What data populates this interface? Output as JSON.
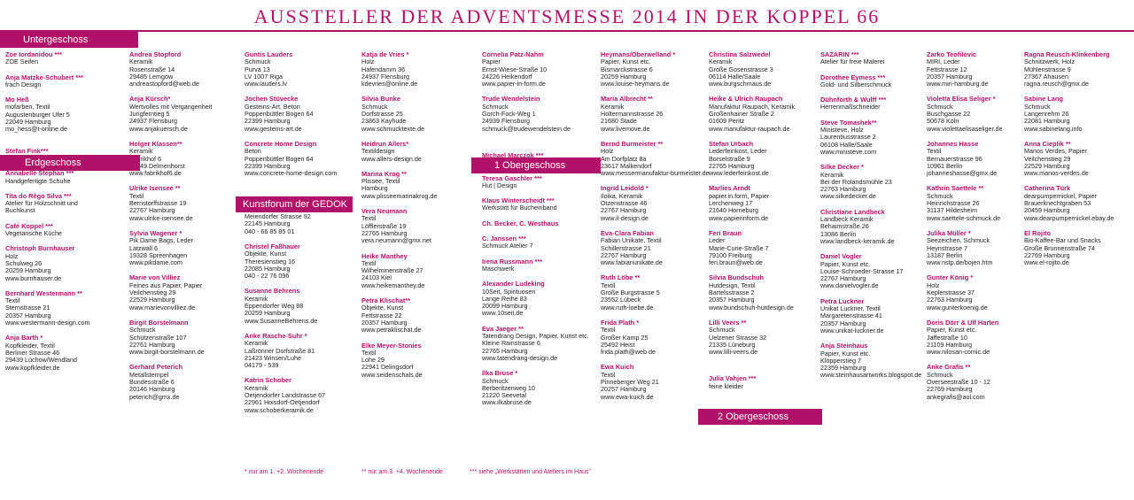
{
  "title": "AUSSTELLER DER ADVENTSMESSE 2014 IN DER KOPPEL 66",
  "banners": {
    "untergeschoss": "Untergeschoss",
    "erdgeschoss": "Erdgeschoss",
    "kunstforum": "Kunstforum der GEDOK",
    "obergeschoss1": "1 Obergeschoss",
    "obergeschoss2": "2 Obergeschoss"
  },
  "footnotes": {
    "f1": "* nur am 1. +2. Wochenende",
    "f2": "** nur am 3. +4. Wochenende",
    "f3": "*** siehe „Werkstätten und Ateliers im Haus\""
  },
  "columns": [
    [
      {
        "name": "Zoe Iordanidou ***",
        "lines": [
          "ZOE Seifen"
        ]
      },
      {
        "name": "Anja Matzke-Schubert ***",
        "lines": [
          "frach Design"
        ]
      },
      {
        "name": "Mo Heß",
        "lines": [
          "mofarben, Textil",
          "Augustenburger Ufer 5",
          "22049 Hamburg",
          "mo_hess@t-online.de"
        ]
      },
      {
        "name": "Stefan Fink***",
        "lines": [
          "Handgemachte Schreibgeräte"
        ]
      },
      {
        "name": "Annabelle Stephan ***",
        "lines": [
          "Handgefertigte Schuhe"
        ]
      },
      {
        "name": "Tita do Rêgo Silva ***",
        "lines": [
          "Atelier für Holzschnitt und",
          "Buchkunst"
        ]
      },
      {
        "name": "Café Koppel ***",
        "lines": [
          "Vegetarische Küche"
        ]
      },
      {
        "name": "Christoph Burnhauser",
        "lines": [
          "Holz",
          "Schulweg 26",
          "20259 Hamburg",
          "www.burnhauser.de"
        ]
      },
      {
        "name": "Bernhard Westermann **",
        "lines": [
          "Textil",
          "Sternstrasse 21",
          "20357 Hamburg",
          "www.westermann-design.com"
        ]
      },
      {
        "name": "Anja Barth *",
        "lines": [
          "Kopfkleider, Textil",
          "Berliner Strasse 46",
          "29439 Lüchow/Wendland",
          "www.kopfkleider.de"
        ]
      }
    ],
    [
      {
        "name": "Andrea Stopford",
        "lines": [
          "Keramik",
          "Rosenstraße 14",
          "29485 Lemgow",
          "andreastopford@web.de"
        ]
      },
      {
        "name": "Anja Kürsch*",
        "lines": [
          "Wertvolles mit Vergangenheit",
          "Jungferntieg 5",
          "24937 Flensburg",
          "www.anjakuersch.de"
        ]
      },
      {
        "name": "Holger Klassen**",
        "lines": [
          "Keramik",
          "Fabrikhof 6",
          "27749 Delmenhorst",
          "www.fabrikhof6.de"
        ]
      },
      {
        "name": "Ulrike Isensee **",
        "lines": [
          "Textil",
          "Bernstorffstrasse 19",
          "22767 Hamburg",
          "www.ulrike-isensee.de"
        ]
      },
      {
        "name": "Sylvia Wagener *",
        "lines": [
          "Pik Dame Bags, Leder",
          "Latzwall 6",
          "19328 Spreenhagen",
          "www.pikdame.com"
        ]
      },
      {
        "name": "Marie von Villiez",
        "lines": [
          "Feines aus Papier, Papier",
          "Veilchenstieg 29",
          "22529 Hamburg",
          "www.marievonvilliez.de"
        ]
      },
      {
        "name": "Birgit Borstelmann",
        "lines": [
          "Schmuck",
          "Schützenstraße 107",
          "22761 Hamburg",
          "www.birgit-borstelmann.de"
        ]
      },
      {
        "name": "Gerhard Peterich",
        "lines": [
          "Metallstempel",
          "Bundesstraße 6",
          "20146 Hamburg",
          "peterich@gmx.de"
        ]
      }
    ],
    [
      {
        "name": "Guntis Lauders",
        "lines": [
          "Schmuck",
          "Purva 13",
          "LV 1007 Riga",
          "www.lauders.lv"
        ]
      },
      {
        "name": "Jochen Stüvecke",
        "lines": [
          "Gesteins-Art, Beton",
          "Poppenbüttler Bogen 64",
          "22399 Hamburg",
          "www.gesteins-art.de"
        ]
      },
      {
        "name": "Concrete Home Design",
        "lines": [
          "Beton",
          "Poppenbüttler Bogen 64",
          "22399 Hamburg",
          "www.concrete-home-design.com"
        ]
      },
      {
        "name": "Marion Meckel **",
        "lines": [
          "Schmuck",
          "Meiendorfer Strasse 92",
          "22145 Hamburg",
          "040 - 66 85 85 01"
        ]
      },
      {
        "name": "Christel Faßhauer",
        "lines": [
          "Objekte, Kunst",
          "Theresienstieg 16",
          "22085 Hamburg",
          "040 - 22 76 096"
        ]
      },
      {
        "name": "Susanne Behrens",
        "lines": [
          "Keramik",
          "Eppendorfer Weg 88",
          "20259 Hamburg",
          "www.SusanneBehrens.de"
        ]
      },
      {
        "name": "Anke Rasche-Suhr *",
        "lines": [
          "Keramik",
          "Laßrönner Dorfstraße 81",
          "21423 Winsen/Luhe",
          "04179 - 539"
        ]
      },
      {
        "name": "Katrin Schober",
        "lines": [
          "Keramik",
          "Oetjendorfer Landstrasse 67",
          "22961 Hoisdorf-Oetjendorf",
          "www.schoberkeramik.de"
        ]
      }
    ],
    [
      {
        "name": "Katja de Vries *",
        "lines": [
          "Holz",
          "Hafendamm 36",
          "24937 Flensburg",
          "kdevries@online.de"
        ]
      },
      {
        "name": "Silvia Bunke",
        "lines": [
          "Schmuck",
          "Dorfstrasse 25",
          "23863 Kayhude",
          "www.schmucktexte.de"
        ]
      },
      {
        "name": "Heidrun Allers*",
        "lines": [
          "Textildesign",
          "www.allers-design.de"
        ]
      },
      {
        "name": "Marina Krog **",
        "lines": [
          "Plissee, Textil",
          "Hamburg",
          "www.plisseemarinakrog.de"
        ]
      },
      {
        "name": "Vera Neumann",
        "lines": [
          "Textil",
          "Löfflerstraße 19",
          "22765 Hamburg",
          "vera.neumann@gmx.net"
        ]
      },
      {
        "name": "Heike Manthey",
        "lines": [
          "Textil",
          "Wilhelminenstraße 27",
          "24103 Kiel",
          "www.heikemanthey.de"
        ]
      },
      {
        "name": "Petra Klischat**",
        "lines": [
          "Objekte, Kunst",
          "Fettstrasse 22",
          "20357 Hamburg",
          "www.petraklischat.de"
        ]
      },
      {
        "name": "Elke Meyer-Stonies",
        "lines": [
          "Textil",
          "Lohe 29",
          "22941 Delingsdorf",
          "www.seidenschals.de"
        ]
      }
    ],
    [
      {
        "name": "Cornelia Patz-Nahm",
        "lines": [
          "Papier",
          "Ernst-Wiese-Straße 10",
          "24226 Heikendorf",
          "www.papier-in-form.de"
        ]
      },
      {
        "name": "Trude Wendelstein",
        "lines": [
          "Schmuck",
          "Gorch-Fock-Weg 1",
          "24939 Flensburg",
          "schmuck@trudewendelstein.de"
        ]
      },
      {
        "name": "Michael Marczok ***",
        "lines": [
          "Fotostudio für Portraits"
        ]
      },
      {
        "name": "Teresa Gaschler ***",
        "lines": [
          "Hut | Design"
        ]
      },
      {
        "name": "Klaus Winterscheidt ***",
        "lines": [
          "Werkstatt für Bucheinband"
        ]
      },
      {
        "name": "Ch. Becker, C. Westhaus",
        "lines": []
      },
      {
        "name": "C. Janssen ***",
        "lines": [
          "Schmuck Atelier 7"
        ]
      },
      {
        "name": "Irena Russmann ***",
        "lines": [
          "Maschwerk"
        ]
      },
      {
        "name": "Alexander Ludeking",
        "lines": [
          "10Seit, Spirituosen",
          "Lange Reihe 83",
          "20099 Hamburg",
          "www.10seit.de"
        ]
      },
      {
        "name": "Eva Jaeger **",
        "lines": [
          "Tatendrang Design, Papier, Kunst etc.",
          "Kleine Rainstrasse 6",
          "22765 Hamburg",
          "www.tatendrang-design.de"
        ]
      },
      {
        "name": "Ilka Bruse *",
        "lines": [
          "Schmuck",
          "Berberitzenweg 10",
          "21220 Seevetal",
          "www.ilkabruse.de"
        ]
      }
    ],
    [
      {
        "name": "Heymans/Oberwelland *",
        "lines": [
          "Papier, Kunst etc.",
          "Bismarckstrasse 6",
          "20259 Hamburg",
          "www.louise-heymans.de"
        ]
      },
      {
        "name": "Maria Albrecht **",
        "lines": [
          "Keramik",
          "Holtermannstrasse 26",
          "21680 Stade",
          "www.livemove.de"
        ]
      },
      {
        "name": "Bernd Burmeister **",
        "lines": [
          "Holz",
          "Am Dorfplatz 8a",
          "23617 Malkendorf",
          "www.messermanufaktur-burmeister.de"
        ]
      },
      {
        "name": "Ingrid Leidold *",
        "lines": [
          "Iloika, Keramik",
          "Otzenstrasse 46",
          "22767 Hamburg",
          "www.il-design.de"
        ]
      },
      {
        "name": "Eva-Clara Fabian",
        "lines": [
          "Fabian Unikate, Textil",
          "Schillerstrasse 21",
          "22767 Hamburg",
          "www.fabianunikate.de"
        ]
      },
      {
        "name": "Ruth Löbe **",
        "lines": [
          "Textil",
          "Große Burgstrasse 5",
          "23552 Lübeck",
          "www.ruth-loebe.de"
        ]
      },
      {
        "name": "Frida Plath *",
        "lines": [
          "Textil",
          "Großer Kamp 25",
          "25492 Heist",
          "frida.plath@web.de"
        ]
      },
      {
        "name": "Ewa Kuich",
        "lines": [
          "Textil",
          "Pinneberger Weg 21",
          "20257 Hamburg",
          "www.ewa-kuich.de"
        ]
      }
    ],
    [
      {
        "name": "Christina Salzwedel",
        "lines": [
          "Keramik",
          "Große Gosenstrasse 3",
          "06114 Halle/Saale",
          "www.burgschmaus.de"
        ]
      },
      {
        "name": "Heike & Ulrich Raupach",
        "lines": [
          "Manufaktur Raupach, Keramik",
          "Großenhainer Straße 2",
          "01609 Peritz",
          "www.manufaktur-raupach.de"
        ]
      },
      {
        "name": "Stefan Urbach",
        "lines": [
          "Lederfeinkost, Leder",
          "Borselstraße 9",
          "22765 Hamburg",
          "www.lederfeinkost.de"
        ]
      },
      {
        "name": "Marlies Arndt",
        "lines": [
          "papier.in.form, Papier",
          "Lerchenweg 17",
          "21640 Horneburg",
          "www.papierinform.de"
        ]
      },
      {
        "name": "Feri Braun",
        "lines": [
          "Leder",
          "Marie-Curie-Straße 7",
          "79100 Freiburg",
          "feri.braun@web.de"
        ]
      },
      {
        "name": "Silvia Bundschuh",
        "lines": [
          "Hutdesign, Textil",
          "Bartelsstrasse 2",
          "20357 Hamburg",
          "www.bundschuh-hutdesign.de"
        ]
      },
      {
        "name": "Lilli Veers **",
        "lines": [
          "Schmuck",
          "Uelzener Strasse 32",
          "21335 Lüneburg",
          "www.lilli-veers.de"
        ]
      },
      {
        "name": "Julia Vahjen ***",
        "lines": [
          "feine kleider"
        ]
      }
    ],
    [
      {
        "name": "SAZARIN ***",
        "lines": [
          "Atelier für freie Malerei"
        ]
      },
      {
        "name": "Dorothee Eymess ***",
        "lines": [
          "Gold- und Silberschmuck"
        ]
      },
      {
        "name": "Dühnforth & Wulff ***",
        "lines": [
          "Herrenmaßschneider"
        ]
      },
      {
        "name": "Steve Tomashek**",
        "lines": [
          "Ministeve, Holz",
          "Laurentiusstrasse 2",
          "06108 Halle/Saale",
          "www.ministeve.com"
        ]
      },
      {
        "name": "Silke Decker *",
        "lines": [
          "Keramik",
          "Bei der Rolandsmühle 23",
          "22763 Hamburg",
          "www.silkedecker.de"
        ]
      },
      {
        "name": "Christiane Landbeck",
        "lines": [
          "Landbeck Keramik",
          "Behaimstraße 26",
          "13086 Berlin",
          "www.landbeck-keramik.de"
        ]
      },
      {
        "name": "Daniel Vogler",
        "lines": [
          "Papier, Kunst etc.",
          "Louise-Schroeder-Strasse 17",
          "22767 Hamburg",
          "www.danielvogler.de"
        ]
      },
      {
        "name": "Petra Luckner",
        "lines": [
          "Unikat Luckner, Textil",
          "Margaretenstrasse 41",
          "20357 Hamburg",
          "www.unikat-luckner.de"
        ]
      },
      {
        "name": "Anja Steinhaus",
        "lines": [
          "Papier, Kunst etc.",
          "Klöpperstieg 7",
          "22359 Hamburg",
          "www.steinhausartworks.blogspot.de"
        ]
      }
    ],
    [
      {
        "name": "Zarko Teofilovic",
        "lines": [
          "MIRI, Leder",
          "Fettstrasse 12",
          "20357 Hamburg",
          "www.miri-hamburg.de"
        ]
      },
      {
        "name": "Violetta Elisa Seliger *",
        "lines": [
          "Schmuck",
          "Buschgasse 22",
          "50678 Köln",
          "www.violettaelisaseliger.de"
        ]
      },
      {
        "name": "Johannes Hasse",
        "lines": [
          "Textil",
          "Bernauerstrasse 96",
          "10961 Berlin",
          "johanneshasse@gmx.de"
        ]
      },
      {
        "name": "Kathrin Saettele **",
        "lines": [
          "Schmuck",
          "Heinrichstrasse 26",
          "31137 Hildesheim",
          "www.saettele-schmuck.de"
        ]
      },
      {
        "name": "Julika Müller *",
        "lines": [
          "Seezeichen, Schmuck",
          "Heynstrasse 7",
          "13187 Berlin",
          "www.nstp.de/bojen.htm"
        ]
      },
      {
        "name": "Gunter König *",
        "lines": [
          "Holz",
          "Keplerstrasse 37",
          "22763 Hamburg",
          "www.gunterkoenig.de"
        ]
      },
      {
        "name": "Doris Dörr & Ulf Harten",
        "lines": [
          "Papier, Kunst etc.",
          "Jaffestraße 10",
          "21109 Hamburg",
          "www.nilosan-comic.de"
        ]
      },
      {
        "name": "Anke Grafis **",
        "lines": [
          "Schmuck",
          "Overseestraße 10 - 12",
          "22769 Hamburg",
          "ankegrafis@aol.com"
        ]
      }
    ],
    [
      {
        "name": "Ragna Reusch-Klinkenberg",
        "lines": [
          "Schnitzwerk, Holz",
          "Mühlenstrasse 9",
          "27367 Ahausen",
          "ragna.reusch@gmx.de"
        ]
      },
      {
        "name": "Sabine Lang",
        "lines": [
          "Schmuck",
          "Langenrehm 26",
          "22081 Hamburg",
          "www.sabinelang.info"
        ]
      },
      {
        "name": "Anna Cieplik **",
        "lines": [
          "Manos Verdes, Papier",
          "Veilchenstieg 29",
          "22529 Hamburg",
          "www.manos-verdes.de"
        ]
      },
      {
        "name": "Catherina Türk",
        "lines": [
          "dearpumpernickel, Papier",
          "Brauerknechtgraben 53",
          "20459 Hamburg",
          "www.dearpumpernickel.ebay.de"
        ]
      },
      {
        "name": "El Rojito",
        "lines": [
          "Bio-Kaffee-Bar und Snacks",
          "Große Brunnenstraße 74",
          "22769 Hamburg",
          "www.el-rojito.de"
        ]
      }
    ]
  ]
}
